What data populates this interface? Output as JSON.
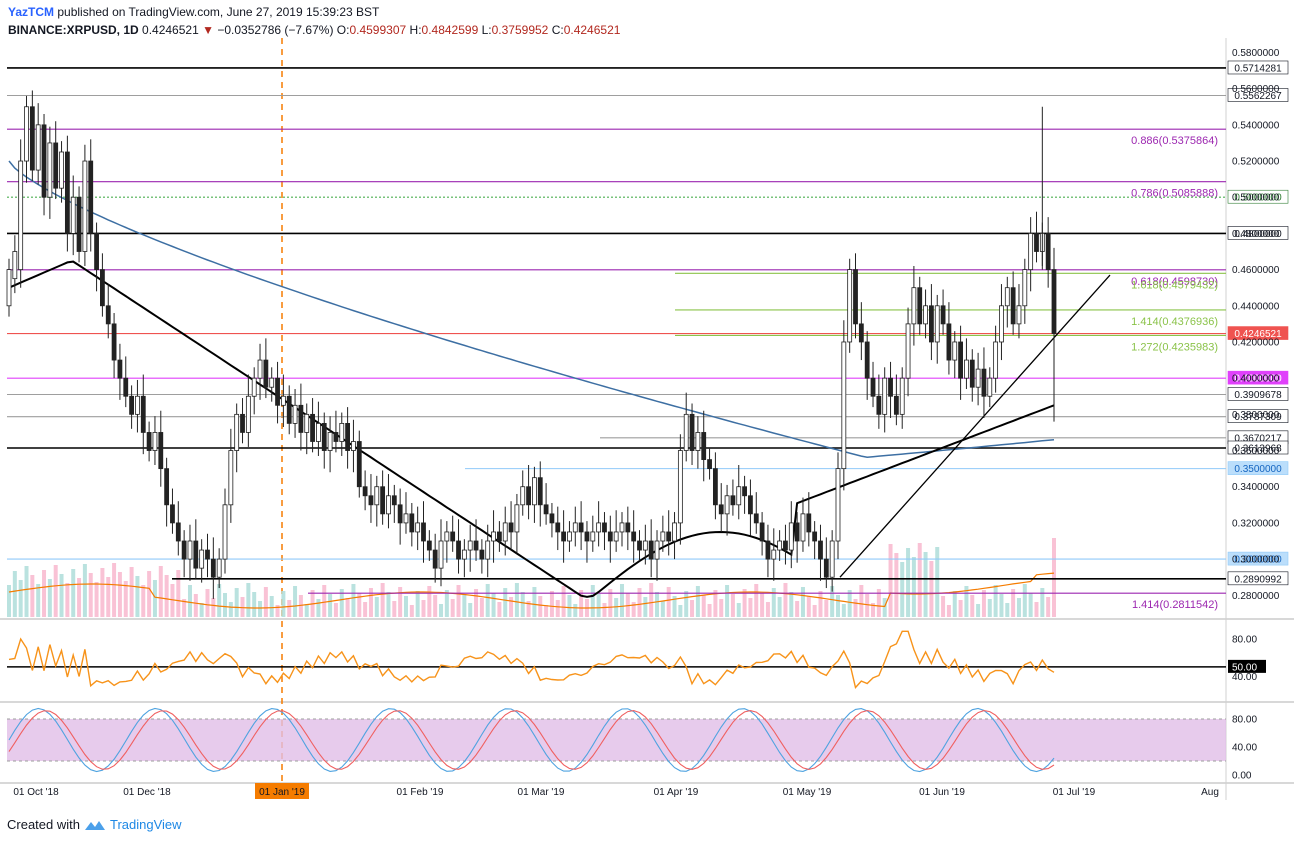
{
  "header": {
    "publisher": "YazTCM",
    "published_text": "published on TradingView.com, June 27, 2019 15:39:23 BST",
    "symbol": "BINANCE:XRPUSD, 1D",
    "last": "0.4246521",
    "change": "−0.0352786 (−7.67%)",
    "open_label": "O:",
    "open": "0.4599307",
    "high_label": "H:",
    "high": "0.4842599",
    "low_label": "L:",
    "low": "0.3759952",
    "close_label": "C:",
    "close": "0.4246521"
  },
  "footer": {
    "created_with": "Created with",
    "brand": "TradingView"
  },
  "colors": {
    "up": "#26a69a",
    "down": "#ef5350",
    "fib": "#9c27b0",
    "ext": "#8bc34a",
    "ma_black": "#000000",
    "ma_blue": "#3d6fa3",
    "volume_ma": "#f57c00",
    "rsi_line": "#f7931a",
    "stoch_k": "#4fa3e0",
    "stoch_d": "#f06060",
    "stoch_band": "#e1bee7"
  },
  "chart_data": {
    "type": "candlestick",
    "y_range": [
      0.268,
      0.588
    ],
    "price_ticks": [
      "0.5800000",
      "0.5600000",
      "0.5400000",
      "0.5200000",
      "0.5000000",
      "0.4800000",
      "0.4600000",
      "0.4400000",
      "0.4200000",
      "0.4000000",
      "0.3800000",
      "0.3600000",
      "0.3400000",
      "0.3200000",
      "0.3000000",
      "0.2800000"
    ],
    "x_labels": [
      "01 Oct '18",
      "01 Dec '18",
      "01 Jan '19",
      "01 Feb '19",
      "01 Mar '19",
      "01 Apr '19",
      "01 May '19",
      "01 Jun '19",
      "01 Jul '19",
      "Aug"
    ],
    "levels": [
      {
        "value": 0.5714281,
        "label": "0.5714281",
        "color": "#000000",
        "badge": "outline"
      },
      {
        "value": 0.5562267,
        "label": "0.5562267",
        "color": "#9e9e9e",
        "badge": "outline"
      },
      {
        "value": 0.5375864,
        "label": "0.886(0.5375864)",
        "color": "#9c27b0",
        "badge": "text"
      },
      {
        "value": 0.5085888,
        "label": "0.786(0.5085888)",
        "color": "#9c27b0",
        "badge": "text"
      },
      {
        "value": 0.5,
        "label": "0.5000000",
        "color": "#4caf50",
        "badge": "green"
      },
      {
        "value": 0.48,
        "label": "0.4800000",
        "color": "#000000",
        "badge": "outline"
      },
      {
        "value": 0.459873,
        "label": "0.618(0.4598730)",
        "color": "#9c27b0",
        "badge": "text"
      },
      {
        "value": 0.4579432,
        "label": "1.618(0.4579432)",
        "color": "#8bc34a",
        "badge": "text"
      },
      {
        "value": 0.4376936,
        "label": "1.414(0.4376936)",
        "color": "#8bc34a",
        "badge": "text"
      },
      {
        "value": 0.4246521,
        "label": "0.4246521",
        "color": "#ef5350",
        "badge": "red"
      },
      {
        "value": 0.4235983,
        "label": "1.272(0.4235983)",
        "color": "#8bc34a",
        "badge": "text"
      },
      {
        "value": 0.4,
        "label": "0.4000000",
        "color": "#e040fb",
        "badge": "magenta"
      },
      {
        "value": 0.3909678,
        "label": "0.3909678",
        "color": "#9e9e9e",
        "badge": "outline"
      },
      {
        "value": 0.3787309,
        "label": "0.3787309",
        "color": "#9e9e9e",
        "badge": "outline"
      },
      {
        "value": 0.3670217,
        "label": "0.3670217",
        "color": "#9e9e9e",
        "badge": "outline"
      },
      {
        "value": 0.3613968,
        "label": "0.3613968",
        "color": "#000000",
        "badge": "outline"
      },
      {
        "value": 0.35,
        "label": "0.3500000",
        "color": "#90caf9",
        "badge": "blue"
      },
      {
        "value": 0.3,
        "label": "0.3000000",
        "color": "#90caf9",
        "badge": "blue"
      },
      {
        "value": 0.2890992,
        "label": "0.2890992",
        "color": "#000000",
        "badge": "outline"
      },
      {
        "value": 0.2811542,
        "label": "1.414(0.2811542)",
        "color": "#9c27b0",
        "badge": "text"
      }
    ],
    "price_path": [
      [
        0.44,
        0.46
      ],
      [
        0.455,
        0.47
      ],
      [
        0.46,
        0.52
      ],
      [
        0.52,
        0.55
      ],
      [
        0.55,
        0.515
      ],
      [
        0.515,
        0.54
      ],
      [
        0.54,
        0.5
      ],
      [
        0.5,
        0.53
      ],
      [
        0.53,
        0.505
      ],
      [
        0.505,
        0.525
      ],
      [
        0.525,
        0.48
      ],
      [
        0.48,
        0.5
      ],
      [
        0.5,
        0.47
      ],
      [
        0.47,
        0.52
      ],
      [
        0.52,
        0.48
      ],
      [
        0.48,
        0.46
      ],
      [
        0.46,
        0.44
      ],
      [
        0.44,
        0.43
      ],
      [
        0.43,
        0.41
      ],
      [
        0.41,
        0.4
      ],
      [
        0.4,
        0.39
      ],
      [
        0.39,
        0.38
      ],
      [
        0.38,
        0.39
      ],
      [
        0.39,
        0.37
      ],
      [
        0.37,
        0.36
      ],
      [
        0.36,
        0.37
      ],
      [
        0.37,
        0.35
      ],
      [
        0.35,
        0.33
      ],
      [
        0.33,
        0.32
      ],
      [
        0.32,
        0.31
      ],
      [
        0.31,
        0.3
      ],
      [
        0.3,
        0.31
      ],
      [
        0.31,
        0.295
      ],
      [
        0.295,
        0.305
      ],
      [
        0.305,
        0.3
      ],
      [
        0.3,
        0.29
      ],
      [
        0.29,
        0.3
      ],
      [
        0.3,
        0.33
      ],
      [
        0.33,
        0.36
      ],
      [
        0.36,
        0.38
      ],
      [
        0.38,
        0.37
      ],
      [
        0.37,
        0.39
      ],
      [
        0.39,
        0.4
      ],
      [
        0.4,
        0.41
      ],
      [
        0.41,
        0.395
      ],
      [
        0.395,
        0.4
      ],
      [
        0.4,
        0.385
      ],
      [
        0.385,
        0.39
      ],
      [
        0.39,
        0.375
      ],
      [
        0.375,
        0.385
      ],
      [
        0.385,
        0.37
      ],
      [
        0.37,
        0.38
      ],
      [
        0.38,
        0.365
      ],
      [
        0.365,
        0.375
      ],
      [
        0.375,
        0.36
      ],
      [
        0.36,
        0.37
      ],
      [
        0.37,
        0.365
      ],
      [
        0.365,
        0.375
      ],
      [
        0.375,
        0.36
      ],
      [
        0.36,
        0.365
      ],
      [
        0.365,
        0.34
      ],
      [
        0.34,
        0.335
      ],
      [
        0.335,
        0.33
      ],
      [
        0.33,
        0.34
      ],
      [
        0.34,
        0.325
      ],
      [
        0.325,
        0.335
      ],
      [
        0.335,
        0.33
      ],
      [
        0.33,
        0.32
      ],
      [
        0.32,
        0.325
      ],
      [
        0.325,
        0.315
      ],
      [
        0.315,
        0.32
      ],
      [
        0.32,
        0.31
      ],
      [
        0.31,
        0.305
      ],
      [
        0.305,
        0.295
      ],
      [
        0.295,
        0.31
      ],
      [
        0.31,
        0.315
      ],
      [
        0.315,
        0.31
      ],
      [
        0.31,
        0.3
      ],
      [
        0.3,
        0.305
      ],
      [
        0.305,
        0.31
      ],
      [
        0.31,
        0.305
      ],
      [
        0.305,
        0.3
      ],
      [
        0.3,
        0.31
      ],
      [
        0.31,
        0.315
      ],
      [
        0.315,
        0.31
      ],
      [
        0.31,
        0.32
      ],
      [
        0.32,
        0.315
      ],
      [
        0.315,
        0.33
      ],
      [
        0.33,
        0.34
      ],
      [
        0.34,
        0.33
      ],
      [
        0.33,
        0.345
      ],
      [
        0.345,
        0.33
      ],
      [
        0.33,
        0.325
      ],
      [
        0.325,
        0.32
      ],
      [
        0.32,
        0.315
      ],
      [
        0.315,
        0.31
      ],
      [
        0.31,
        0.315
      ],
      [
        0.315,
        0.32
      ],
      [
        0.32,
        0.315
      ],
      [
        0.315,
        0.31
      ],
      [
        0.31,
        0.315
      ],
      [
        0.315,
        0.32
      ],
      [
        0.32,
        0.315
      ],
      [
        0.315,
        0.31
      ],
      [
        0.31,
        0.315
      ],
      [
        0.315,
        0.32
      ],
      [
        0.32,
        0.315
      ],
      [
        0.315,
        0.31
      ],
      [
        0.31,
        0.305
      ],
      [
        0.305,
        0.31
      ],
      [
        0.31,
        0.3
      ],
      [
        0.3,
        0.31
      ],
      [
        0.31,
        0.315
      ],
      [
        0.315,
        0.31
      ],
      [
        0.31,
        0.32
      ],
      [
        0.32,
        0.36
      ],
      [
        0.36,
        0.38
      ],
      [
        0.38,
        0.36
      ],
      [
        0.36,
        0.37
      ],
      [
        0.37,
        0.355
      ],
      [
        0.355,
        0.35
      ],
      [
        0.35,
        0.33
      ],
      [
        0.33,
        0.325
      ],
      [
        0.325,
        0.335
      ],
      [
        0.335,
        0.33
      ],
      [
        0.33,
        0.34
      ],
      [
        0.34,
        0.335
      ],
      [
        0.335,
        0.325
      ],
      [
        0.325,
        0.32
      ],
      [
        0.32,
        0.31
      ],
      [
        0.31,
        0.3
      ],
      [
        0.3,
        0.305
      ],
      [
        0.305,
        0.31
      ],
      [
        0.31,
        0.305
      ],
      [
        0.305,
        0.32
      ],
      [
        0.32,
        0.31
      ],
      [
        0.31,
        0.325
      ],
      [
        0.325,
        0.315
      ],
      [
        0.315,
        0.31
      ],
      [
        0.31,
        0.3
      ],
      [
        0.3,
        0.29
      ],
      [
        0.29,
        0.31
      ],
      [
        0.31,
        0.35
      ],
      [
        0.35,
        0.42
      ],
      [
        0.42,
        0.46
      ],
      [
        0.46,
        0.43
      ],
      [
        0.43,
        0.42
      ],
      [
        0.42,
        0.4
      ],
      [
        0.4,
        0.39
      ],
      [
        0.39,
        0.38
      ],
      [
        0.38,
        0.4
      ],
      [
        0.4,
        0.39
      ],
      [
        0.39,
        0.38
      ],
      [
        0.38,
        0.4
      ],
      [
        0.4,
        0.43
      ],
      [
        0.43,
        0.45
      ],
      [
        0.45,
        0.43
      ],
      [
        0.43,
        0.44
      ],
      [
        0.44,
        0.42
      ],
      [
        0.42,
        0.44
      ],
      [
        0.44,
        0.43
      ],
      [
        0.43,
        0.41
      ],
      [
        0.41,
        0.42
      ],
      [
        0.42,
        0.4
      ],
      [
        0.4,
        0.41
      ],
      [
        0.41,
        0.395
      ],
      [
        0.395,
        0.405
      ],
      [
        0.405,
        0.39
      ],
      [
        0.39,
        0.4
      ],
      [
        0.4,
        0.42
      ],
      [
        0.42,
        0.44
      ],
      [
        0.44,
        0.45
      ],
      [
        0.45,
        0.43
      ],
      [
        0.43,
        0.44
      ],
      [
        0.44,
        0.46
      ],
      [
        0.46,
        0.48
      ],
      [
        0.48,
        0.47
      ],
      [
        0.47,
        0.48
      ],
      [
        0.48,
        0.46
      ],
      [
        0.46,
        0.4246521
      ]
    ],
    "volume_range": [
      0,
      1
    ]
  }
}
